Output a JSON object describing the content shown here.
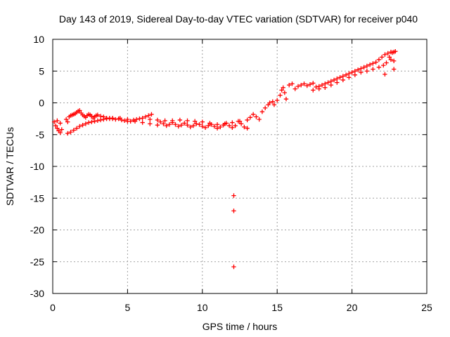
{
  "chart_data": {
    "type": "scatter",
    "title": "Day 143 of 2019, Sidereal Day-to-day VTEC variation (SDTVAR) for receiver p040",
    "xlabel": "GPS time / hours",
    "ylabel": "SDTVAR / TECUs",
    "xlim": [
      0,
      25
    ],
    "ylim": [
      -30,
      10
    ],
    "xticks": [
      0,
      5,
      10,
      15,
      20,
      25
    ],
    "yticks": [
      -30,
      -25,
      -20,
      -15,
      -10,
      -5,
      0,
      5,
      10
    ],
    "grid": true,
    "marker": "+",
    "color": "#ff0000",
    "series": [
      {
        "name": "SDTVAR",
        "x": [
          0.1,
          0.2,
          0.3,
          0.4,
          0.5,
          0.6,
          0.3,
          0.5,
          0.9,
          1.0,
          1.1,
          1.2,
          1.3,
          1.4,
          1.5,
          1.6,
          1.7,
          1.8,
          1.9,
          2.0,
          2.1,
          2.2,
          2.3,
          2.4,
          2.5,
          2.6,
          2.7,
          2.8,
          2.9,
          3.0,
          3.2,
          3.4,
          3.6,
          3.8,
          4.0,
          4.2,
          4.4,
          4.6,
          4.8,
          5.0,
          5.2,
          5.4,
          5.6,
          5.8,
          6.0,
          6.2,
          6.4,
          6.6,
          1.0,
          1.2,
          1.4,
          1.6,
          1.8,
          2.0,
          2.2,
          2.4,
          2.6,
          2.8,
          3.0,
          3.2,
          3.4,
          3.6,
          3.8,
          4.0,
          4.5,
          5.0,
          5.5,
          6.0,
          6.5,
          7.0,
          7.2,
          7.4,
          7.6,
          7.8,
          8.0,
          8.2,
          8.4,
          8.6,
          8.8,
          9.0,
          9.2,
          9.4,
          9.6,
          9.8,
          10.0,
          10.2,
          10.4,
          10.6,
          10.8,
          11.0,
          11.2,
          11.4,
          11.6,
          11.8,
          12.0,
          12.2,
          12.4,
          12.6,
          12.8,
          13.0,
          6.5,
          7.0,
          7.5,
          8.0,
          8.5,
          9.0,
          9.5,
          10.0,
          10.5,
          11.0,
          11.5,
          12.0,
          12.5,
          13.0,
          13.2,
          13.4,
          13.6,
          13.8,
          14.0,
          14.2,
          14.4,
          14.5,
          14.7,
          14.8,
          15.0,
          15.2,
          15.3,
          15.4,
          15.5,
          15.6,
          15.8,
          16.0,
          16.2,
          16.4,
          16.6,
          16.8,
          17.0,
          17.2,
          17.4,
          17.6,
          17.8,
          18.0,
          18.2,
          18.4,
          18.6,
          18.8,
          19.0,
          19.2,
          19.4,
          19.6,
          19.8,
          20.0,
          20.2,
          20.4,
          20.6,
          20.8,
          21.0,
          21.2,
          21.4,
          21.6,
          21.8,
          22.0,
          22.2,
          22.4,
          22.6,
          22.8,
          17.4,
          17.8,
          18.2,
          18.6,
          19.0,
          19.4,
          19.8,
          20.2,
          20.6,
          21.0,
          21.4,
          21.8,
          22.1,
          22.3,
          22.5,
          22.7,
          22.9,
          22.6,
          22.8,
          22.2,
          22.8,
          12.1,
          12.1,
          12.1
        ],
        "y": [
          -3.0,
          -3.6,
          -4.0,
          -4.4,
          -4.7,
          -4.2,
          -2.8,
          -3.2,
          -2.6,
          -3.0,
          -2.2,
          -2.0,
          -1.9,
          -1.8,
          -1.7,
          -1.5,
          -1.3,
          -1.2,
          -1.6,
          -1.9,
          -2.1,
          -2.3,
          -2.0,
          -1.8,
          -1.9,
          -2.1,
          -2.4,
          -2.2,
          -2.0,
          -1.9,
          -2.1,
          -2.2,
          -2.4,
          -2.4,
          -2.5,
          -2.6,
          -2.5,
          -2.7,
          -2.8,
          -2.9,
          -2.9,
          -2.7,
          -2.6,
          -2.5,
          -2.4,
          -2.2,
          -2.0,
          -1.8,
          -4.8,
          -4.6,
          -4.3,
          -4.0,
          -3.7,
          -3.5,
          -3.3,
          -3.1,
          -3.0,
          -2.9,
          -2.8,
          -2.7,
          -2.6,
          -2.5,
          -2.5,
          -2.4,
          -2.4,
          -2.6,
          -2.9,
          -3.1,
          -3.3,
          -3.5,
          -3.0,
          -3.3,
          -3.6,
          -3.4,
          -3.1,
          -3.4,
          -3.7,
          -3.5,
          -3.2,
          -3.5,
          -3.8,
          -3.6,
          -3.3,
          -3.4,
          -3.7,
          -3.9,
          -3.6,
          -3.4,
          -3.7,
          -4.0,
          -3.8,
          -3.5,
          -3.2,
          -3.6,
          -3.9,
          -3.6,
          -2.9,
          -3.3,
          -3.8,
          -4.0,
          -2.6,
          -2.7,
          -2.8,
          -2.8,
          -2.7,
          -2.8,
          -2.9,
          -3.0,
          -3.2,
          -3.4,
          -3.3,
          -3.1,
          -2.9,
          -2.7,
          -2.3,
          -1.8,
          -2.2,
          -2.6,
          -1.4,
          -0.8,
          -0.3,
          0.0,
          0.2,
          -0.3,
          0.4,
          1.2,
          2.0,
          2.4,
          1.6,
          0.6,
          2.8,
          3.0,
          2.2,
          2.6,
          2.8,
          3.0,
          2.7,
          2.9,
          3.1,
          2.5,
          2.6,
          2.8,
          3.0,
          3.2,
          3.4,
          3.6,
          3.8,
          4.0,
          4.2,
          4.4,
          4.6,
          4.8,
          5.0,
          5.2,
          5.4,
          5.6,
          5.8,
          6.0,
          6.2,
          6.4,
          6.8,
          7.2,
          7.6,
          7.8,
          8.0,
          8.0,
          2.0,
          2.2,
          2.4,
          2.8,
          3.2,
          3.6,
          4.0,
          4.4,
          4.8,
          5.0,
          5.3,
          5.6,
          5.9,
          6.3,
          7.2,
          7.9,
          8.1,
          6.8,
          6.6,
          4.5,
          5.3,
          -14.6,
          -17.0,
          -25.8
        ]
      }
    ]
  }
}
